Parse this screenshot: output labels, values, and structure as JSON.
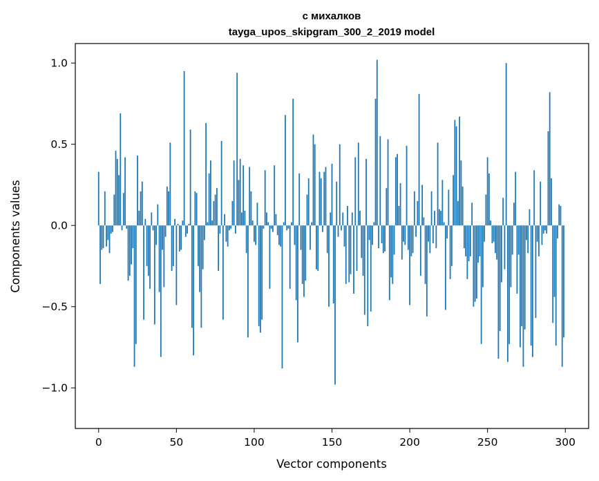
{
  "chart_data": {
    "type": "bar",
    "title": "с михалков",
    "subtitle": "tayga_upos_skipgram_300_2_2019 model",
    "xlabel": "Vector components",
    "ylabel": "Components values",
    "xlim": [
      -15,
      315
    ],
    "ylim": [
      -1.25,
      1.12
    ],
    "x_ticks": [
      0,
      50,
      100,
      150,
      200,
      250,
      300
    ],
    "y_ticks": [
      -1.0,
      -0.5,
      0.0,
      0.5,
      1.0
    ],
    "x_tick_labels": [
      "0",
      "50",
      "100",
      "150",
      "200",
      "250",
      "300"
    ],
    "y_tick_labels": [
      "−1.0",
      "−0.5",
      "0.0",
      "0.5",
      "1.0"
    ],
    "bar_color": "#1f77b4",
    "values": [
      0.33,
      -0.36,
      -0.15,
      -0.14,
      0.21,
      -0.13,
      -0.09,
      -0.17,
      -0.05,
      -0.04,
      0.19,
      0.46,
      0.41,
      0.31,
      0.69,
      -0.03,
      0.2,
      0.42,
      -0.02,
      -0.34,
      -0.31,
      -0.24,
      -0.14,
      -0.87,
      -0.73,
      0.43,
      0.09,
      0.21,
      0.27,
      -0.58,
      0.04,
      -0.25,
      -0.31,
      -0.39,
      0.08,
      -0.03,
      -0.61,
      -0.12,
      0.13,
      -0.41,
      -0.81,
      -0.15,
      -0.38,
      -0.07,
      0.24,
      0.21,
      0.51,
      -0.28,
      -0.25,
      0.04,
      -0.49,
      0.01,
      -0.16,
      -0.15,
      0.03,
      0.95,
      -0.07,
      -0.05,
      0.01,
      0.59,
      -0.63,
      -0.8,
      0.21,
      0.2,
      -0.25,
      -0.41,
      -0.63,
      -0.27,
      -0.09,
      0.63,
      0.02,
      0.32,
      0.4,
      0.03,
      0.15,
      0.19,
      0.23,
      -0.28,
      -0.05,
      0.52,
      -0.58,
      0.07,
      -0.1,
      -0.13,
      -0.03,
      -0.02,
      0.15,
      0.4,
      -0.05,
      0.94,
      0.28,
      0.41,
      0.08,
      0.37,
      0.09,
      -0.17,
      -0.69,
      0.36,
      0.21,
      0.03,
      -0.1,
      -0.12,
      0.14,
      -0.62,
      -0.66,
      -0.58,
      -0.02,
      0.34,
      0.08,
      0.02,
      -0.39,
      -0.02,
      -0.04,
      0.37,
      0.07,
      -0.06,
      -0.12,
      -0.13,
      -0.88,
      0.02,
      0.68,
      -0.03,
      -0.02,
      -0.39,
      0.02,
      0.78,
      -0.12,
      -0.46,
      -0.72,
      0.32,
      -0.15,
      -0.36,
      -0.44,
      -0.34,
      0.19,
      0.29,
      -0.15,
      0.02,
      0.56,
      0.5,
      -0.27,
      -0.28,
      0.33,
      0.29,
      -0.04,
      0.33,
      0.36,
      -0.17,
      -0.5,
      0.08,
      0.38,
      -0.48,
      -0.98,
      0.27,
      -0.07,
      0.5,
      -0.03,
      0.08,
      -0.13,
      -0.36,
      0.12,
      -0.35,
      -0.3,
      0.08,
      -0.42,
      0.42,
      -0.28,
      0.51,
      0.09,
      -0.2,
      -0.31,
      -0.55,
      0.41,
      -0.62,
      -0.09,
      -0.53,
      -0.12,
      0.02,
      0.78,
      1.02,
      -0.14,
      0.55,
      -0.11,
      -0.17,
      -0.16,
      0.23,
      0.53,
      -0.46,
      -0.32,
      -0.36,
      -0.18,
      0.42,
      0.44,
      0.12,
      0.26,
      -0.21,
      -0.1,
      -0.12,
      0.49,
      -0.15,
      -0.49,
      -0.19,
      -0.17,
      0.21,
      -0.07,
      0.15,
      0.81,
      -0.31,
      0.25,
      0.05,
      -0.36,
      -0.56,
      -0.1,
      -0.17,
      0.21,
      -0.11,
      0.09,
      -0.14,
      0.51,
      0.1,
      0.09,
      0.28,
      0.02,
      -0.52,
      -0.08,
      0.22,
      -0.33,
      -0.25,
      0.31,
      0.65,
      0.61,
      0.15,
      0.67,
      0.4,
      0.24,
      -0.14,
      -0.19,
      -0.33,
      -0.22,
      -0.19,
      0.14,
      -0.5,
      -0.47,
      -0.45,
      -0.23,
      -0.19,
      -0.73,
      -0.38,
      -0.1,
      0.19,
      0.42,
      0.32,
      0.03,
      -0.11,
      -0.1,
      -0.17,
      -0.21,
      -0.82,
      -0.65,
      -0.35,
      0.17,
      -0.27,
      1.0,
      -0.84,
      -0.73,
      -0.38,
      -0.18,
      0.14,
      0.33,
      -0.42,
      -0.18,
      -0.75,
      -0.62,
      -0.87,
      -0.64,
      -0.09,
      -0.17,
      0.1,
      -0.74,
      -0.81,
      0.34,
      -0.57,
      -0.1,
      -0.19,
      0.27,
      -0.12,
      -0.05,
      -0.03,
      -0.05,
      0.58,
      0.82,
      0.29,
      -0.6,
      -0.44,
      -0.74,
      -0.08,
      0.13,
      0.12,
      -0.87,
      -0.69
    ]
  }
}
